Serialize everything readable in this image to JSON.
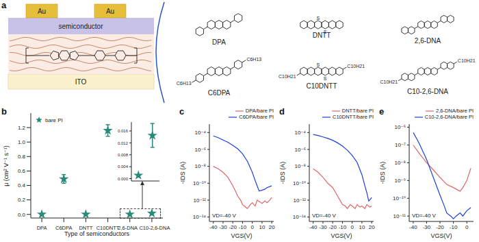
{
  "panel_labels": [
    "a",
    "b",
    "c",
    "d",
    "e"
  ],
  "device": {
    "electrodes": [
      "Au",
      "Au"
    ],
    "layers": [
      "semiconductor",
      "ITO"
    ]
  },
  "molecules": [
    {
      "name": "DPA"
    },
    {
      "name": "DNTT",
      "heteroatom": "S"
    },
    {
      "name": "2,6-DNA"
    },
    {
      "name": "C6DPA",
      "substituent": "C6H13"
    },
    {
      "name": "C10DNTT",
      "heteroatom": "S",
      "substituent": "C10H21"
    },
    {
      "name": "C10-2,6-DNA",
      "substituent": "C10H21"
    }
  ],
  "chart_data": [
    {
      "type": "scatter",
      "categories": [
        "DPA",
        "C6DPA",
        "DNTT",
        "C10DNTT",
        "2,6-DNA",
        "C10-2,6-DNA"
      ],
      "x_label": "Type of semiconductors",
      "y_label": "μ (cm² V⁻¹ s⁻¹)",
      "ylim": [
        -0.05,
        1.4
      ],
      "yticks": [
        {
          "value": 0,
          "label": "0.0"
        },
        0.2,
        0.4,
        0.6,
        0.8,
        {
          "value": 1,
          "label": "1.0"
        },
        1.2
      ],
      "legend": "upper left",
      "series": [
        {
          "name": "bare PI",
          "color": "#2a8a7a",
          "marker": "star",
          "values": [
            0.0008,
            0.49,
            0.0005,
            1.16,
            0.0011,
            0.0145
          ],
          "errors": [
            null,
            0.06,
            null,
            0.08,
            null,
            0.004
          ]
        }
      ]
    },
    {
      "type": "scatter",
      "categories": [
        "2,6-DNA",
        "C10-2,6-DNA"
      ],
      "tick_labels": "y",
      "ylim": [
        -0.0008,
        0.019
      ],
      "yticks": [
        {
          "value": 0,
          "label": "0.000"
        },
        0.004,
        0.008,
        0.012,
        0.016
      ],
      "series": [
        {
          "color": "#2a8a7a",
          "marker": "star",
          "values": [
            0.0011,
            0.0145
          ],
          "errors": [
            null,
            0.004
          ]
        }
      ]
    },
    {
      "type": "line",
      "x_label": "VGS(V)",
      "y_label": "-IDS (A)",
      "log": "y",
      "annotation": "VD=-40 V",
      "legend": "upper right",
      "xlim": [
        -44,
        22
      ],
      "xticks": [
        -40,
        -30,
        -20,
        -10,
        0,
        10,
        20
      ],
      "ylim": [
        3e-15,
        0.001
      ],
      "yticks": [
        {
          "value": 1e-14,
          "label": "10⁻¹⁴"
        },
        {
          "value": 1e-12,
          "label": "10⁻¹²"
        },
        {
          "value": 1e-10,
          "label": "10⁻¹⁰"
        },
        {
          "value": 1e-08,
          "label": "10⁻⁸"
        },
        {
          "value": 1e-06,
          "label": "10⁻⁶"
        },
        {
          "value": 0.0001,
          "label": "10⁻⁴"
        }
      ],
      "series": [
        {
          "name": "DPA/bare PI",
          "color": "#e06666",
          "x": [
            -40,
            -35,
            -30,
            -25,
            -20,
            -17,
            -15,
            -12,
            -10,
            -7,
            -5,
            -2,
            0,
            3,
            5,
            8,
            10,
            13,
            15,
            18,
            20
          ],
          "values": [
            1e-08,
            5e-09,
            2e-09,
            5e-10,
            5e-11,
            1e-11,
            3e-12,
            1e-12,
            3e-13,
            1.5e-13,
            1e-13,
            3e-13,
            5e-13,
            2e-13,
            1e-12,
            6e-13,
            4e-13,
            8e-13,
            5e-13,
            1e-12,
            2e-12
          ]
        },
        {
          "name": "C6DPA/bare PI",
          "color": "#1f3fdc",
          "x": [
            -40,
            -35,
            -30,
            -25,
            -20,
            -15,
            -10,
            -5,
            0,
            3,
            5,
            7,
            10,
            13,
            15,
            18,
            20
          ],
          "values": [
            4e-05,
            2.5e-05,
            1.3e-05,
            7e-06,
            3e-06,
            1.2e-06,
            3e-07,
            4e-08,
            2e-09,
            2e-10,
            5e-11,
            1.2e-11,
            1.5e-11,
            2e-11,
            3e-11,
            4e-11,
            5e-11
          ]
        }
      ]
    },
    {
      "type": "line",
      "x_label": "VGS(V)",
      "y_label": "-IDS (A)",
      "log": "y",
      "annotation": "VD=-40 V",
      "legend": "upper right",
      "xlim": [
        -44,
        22
      ],
      "xticks": [
        -40,
        -30,
        -20,
        -10,
        0,
        10,
        20
      ],
      "ylim": [
        3e-15,
        0.001
      ],
      "yticks": [
        {
          "value": 1e-14,
          "label": "10⁻¹⁴"
        },
        {
          "value": 1e-12,
          "label": "10⁻¹²"
        },
        {
          "value": 1e-10,
          "label": "10⁻¹⁰"
        },
        {
          "value": 1e-08,
          "label": "10⁻⁸"
        },
        {
          "value": 1e-06,
          "label": "10⁻⁶"
        },
        {
          "value": 0.0001,
          "label": "10⁻⁴"
        }
      ],
      "series": [
        {
          "name": "DNTT/bare PI",
          "color": "#e06666",
          "x": [
            -40,
            -35,
            -30,
            -25,
            -20,
            -17,
            -15,
            -12,
            -10,
            -7,
            -5,
            -2,
            0,
            3,
            5,
            8,
            10,
            13,
            15,
            18,
            20
          ],
          "values": [
            5e-09,
            2e-09,
            5e-10,
            1e-10,
            3e-11,
            8e-12,
            3e-12,
            8e-13,
            3e-13,
            2e-13,
            1e-13,
            3e-13,
            2e-13,
            1e-13,
            3e-13,
            1.5e-13,
            2e-13,
            1e-13,
            3e-13,
            1.5e-13,
            2e-13
          ]
        },
        {
          "name": "C10DNTT/bare PI",
          "color": "#1f3fdc",
          "x": [
            -40,
            -35,
            -30,
            -25,
            -20,
            -15,
            -10,
            -5,
            0,
            5,
            10,
            13,
            15,
            17,
            18,
            20
          ],
          "values": [
            6e-05,
            4.5e-05,
            3e-05,
            2e-05,
            1.2e-05,
            6e-06,
            2.5e-06,
            8e-07,
            2e-07,
            3e-08,
            1e-09,
            5e-11,
            8e-12,
            8e-13,
            1e-12,
            2e-12
          ]
        }
      ]
    },
    {
      "type": "line",
      "x_label": "VGS(V)",
      "y_label": "-IDS (A)",
      "log": "y",
      "annotation": "VD=-40 V",
      "legend": "upper right",
      "xlim": [
        -43,
        5
      ],
      "xticks": [
        -40,
        -30,
        -20,
        -10,
        0
      ],
      "ylim": [
        5e-12,
        1.5e-06
      ],
      "yticks": [
        {
          "value": 1e-11,
          "label": "10⁻¹¹"
        },
        {
          "value": 1e-10,
          "label": "10⁻¹⁰"
        },
        {
          "value": 1e-09,
          "label": "10⁻⁹"
        },
        {
          "value": 1e-08,
          "label": "10⁻⁸"
        },
        {
          "value": 1e-07,
          "label": "10⁻⁷"
        },
        {
          "value": 1e-06,
          "label": "10⁻⁶"
        }
      ],
      "series": [
        {
          "name": "2,6-DNA/bare PI",
          "color": "#e06666",
          "x": [
            -40,
            -35,
            -30,
            -25,
            -20,
            -15,
            -10,
            -7,
            -5,
            -3,
            0,
            3
          ],
          "values": [
            1e-07,
            3e-08,
            1e-08,
            4e-09,
            1.5e-09,
            6e-10,
            4e-10,
            3e-10,
            2.5e-10,
            4e-10,
            1e-09,
            5e-09
          ]
        },
        {
          "name": "C10-2,6-DNA/bare PI",
          "color": "#1f3fdc",
          "x": [
            -40,
            -37,
            -35,
            -30,
            -25,
            -20,
            -17,
            -15,
            -12,
            -10,
            -8,
            -5,
            -3,
            0,
            3
          ],
          "values": [
            5e-07,
            2e-07,
            1e-07,
            1.5e-08,
            1.5e-09,
            1.5e-10,
            4e-11,
            1.5e-11,
            1e-11,
            7e-12,
            1e-11,
            1.5e-11,
            1e-11,
            2e-11,
            3e-11
          ]
        }
      ]
    }
  ]
}
